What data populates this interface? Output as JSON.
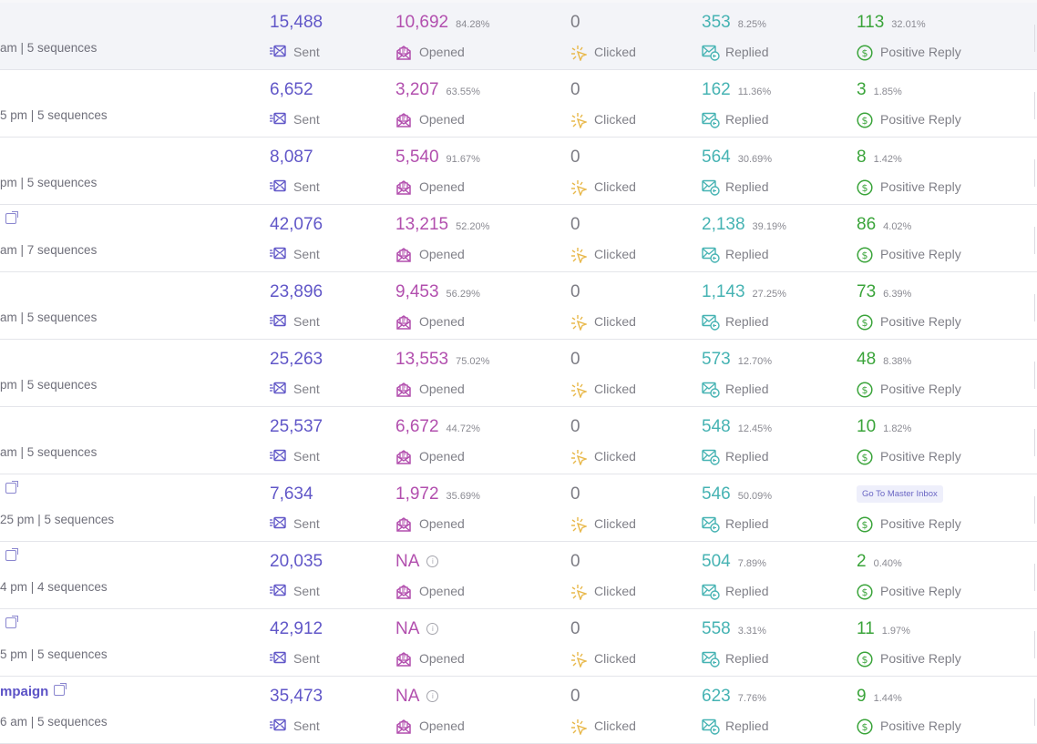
{
  "labels": {
    "sent": "Sent",
    "opened": "Opened",
    "clicked": "Clicked",
    "replied": "Replied",
    "positive": "Positive Reply",
    "na": "NA",
    "master_inbox": "Go To Master Inbox"
  },
  "colors": {
    "sent": "#6157c8",
    "opened": "#b24fae",
    "clicked": "#e8b84a",
    "replied": "#46b3b3",
    "positive": "#3aa43a"
  },
  "rows": [
    {
      "title": "",
      "link": false,
      "sub": "am | 5 sequences",
      "sent": "15,488",
      "opened": "10,692",
      "opened_pct": "84.28%",
      "clicked": "0",
      "replied": "353",
      "replied_pct": "8.25%",
      "positive": "113",
      "positive_pct": "32.01%"
    },
    {
      "title": "",
      "link": false,
      "sub": "5 pm | 5 sequences",
      "sent": "6,652",
      "opened": "3,207",
      "opened_pct": "63.55%",
      "clicked": "0",
      "replied": "162",
      "replied_pct": "11.36%",
      "positive": "3",
      "positive_pct": "1.85%"
    },
    {
      "title": "",
      "link": false,
      "sub": "pm | 5 sequences",
      "sent": "8,087",
      "opened": "5,540",
      "opened_pct": "91.67%",
      "clicked": "0",
      "replied": "564",
      "replied_pct": "30.69%",
      "positive": "8",
      "positive_pct": "1.42%"
    },
    {
      "title": "",
      "link": true,
      "sub": "am | 7 sequences",
      "sent": "42,076",
      "opened": "13,215",
      "opened_pct": "52.20%",
      "clicked": "0",
      "replied": "2,138",
      "replied_pct": "39.19%",
      "positive": "86",
      "positive_pct": "4.02%"
    },
    {
      "title": "",
      "link": false,
      "sub": "am | 5 sequences",
      "sent": "23,896",
      "opened": "9,453",
      "opened_pct": "56.29%",
      "clicked": "0",
      "replied": "1,143",
      "replied_pct": "27.25%",
      "positive": "73",
      "positive_pct": "6.39%"
    },
    {
      "title": "",
      "link": false,
      "sub": "pm | 5 sequences",
      "sent": "25,263",
      "opened": "13,553",
      "opened_pct": "75.02%",
      "clicked": "0",
      "replied": "573",
      "replied_pct": "12.70%",
      "positive": "48",
      "positive_pct": "8.38%"
    },
    {
      "title": "",
      "link": false,
      "sub": "am | 5 sequences",
      "sent": "25,537",
      "opened": "6,672",
      "opened_pct": "44.72%",
      "clicked": "0",
      "replied": "548",
      "replied_pct": "12.45%",
      "positive": "10",
      "positive_pct": "1.82%"
    },
    {
      "title": "",
      "link": true,
      "sub": "25 pm | 5 sequences",
      "sent": "7,634",
      "opened": "1,972",
      "opened_pct": "35.69%",
      "clicked": "0",
      "replied": "546",
      "replied_pct": "50.09%",
      "positive": "",
      "positive_pct": "",
      "master_inbox": true
    },
    {
      "title": "",
      "link": true,
      "sub": "4 pm | 4 sequences",
      "sent": "20,035",
      "opened": "NA",
      "opened_pct": "",
      "clicked": "0",
      "replied": "504",
      "replied_pct": "7.89%",
      "positive": "2",
      "positive_pct": "0.40%"
    },
    {
      "title": "",
      "link": true,
      "sub": "5 pm | 5 sequences",
      "sent": "42,912",
      "opened": "NA",
      "opened_pct": "",
      "clicked": "0",
      "replied": "558",
      "replied_pct": "3.31%",
      "positive": "11",
      "positive_pct": "1.97%"
    },
    {
      "title": "mpaign",
      "link": true,
      "sub": "6 am | 5 sequences",
      "sent": "35,473",
      "opened": "NA",
      "opened_pct": "",
      "clicked": "0",
      "replied": "623",
      "replied_pct": "7.76%",
      "positive": "9",
      "positive_pct": "1.44%"
    }
  ]
}
